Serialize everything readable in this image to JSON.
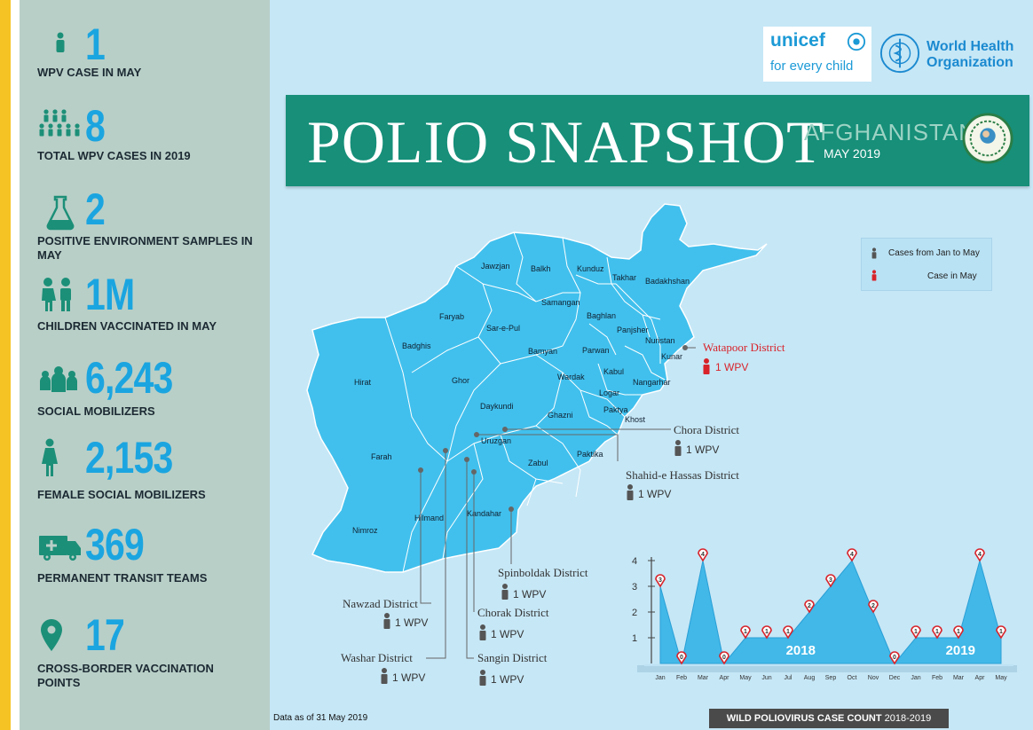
{
  "sidebar": {
    "stats": [
      {
        "value": "1",
        "label": "WPV CASE IN MAY",
        "icon": "person-icon"
      },
      {
        "value": "8",
        "label": "TOTAL WPV CASES IN 2019",
        "icon": "group-icon"
      },
      {
        "value": "2",
        "label": "POSITIVE ENVIRONMENT SAMPLES IN MAY",
        "icon": "flask-icon"
      },
      {
        "value": "1M",
        "label": "CHILDREN VACCINATED IN MAY",
        "icon": "children-icon"
      },
      {
        "value": "6,243",
        "label": "SOCIAL MOBILIZERS",
        "icon": "crowd-icon"
      },
      {
        "value": "2,153",
        "label": "FEMALE SOCIAL MOBILIZERS",
        "icon": "female-icon"
      },
      {
        "value": "369",
        "label": "PERMANENT TRANSIT TEAMS",
        "icon": "ambulance-icon"
      },
      {
        "value": "17",
        "label": "CROSS-BORDER VACCINATION POINTS",
        "icon": "location-pin-icon"
      }
    ]
  },
  "logos": {
    "unicef_name": "unicef",
    "unicef_tagline": "for every child",
    "who_line1": "World Health",
    "who_line2": "Organization"
  },
  "banner": {
    "title": "POLIO SNAPSHOT",
    "country": "AFGHANISTAN",
    "month": "MAY 2019"
  },
  "legend": {
    "jan_to_may": "Cases from Jan to May",
    "in_may": "Case in  May"
  },
  "colors": {
    "accent": "#1ba5e0",
    "banner": "#178f79",
    "map_fill": "#41c0ed",
    "highlight": "#d8232a",
    "sidebar": "#b8cfc7"
  },
  "map": {
    "provinces": [
      "Jawzjan",
      "Balkh",
      "Kunduz",
      "Takhar",
      "Badakhshan",
      "Samangan",
      "Faryab",
      "Baghlan",
      "Sar-e-Pul",
      "Panjsher",
      "Nuristan",
      "Badghis",
      "Bamyan",
      "Parwan",
      "Kunar",
      "Hirat",
      "Ghor",
      "Kabul",
      "Wardak",
      "Nangarhar",
      "Logar",
      "Daykundi",
      "Ghazni",
      "Paktya",
      "Khost",
      "Uruzgan",
      "Farah",
      "Paktika",
      "Zabul",
      "Hilmand",
      "Kandahar",
      "Nimroz"
    ],
    "districts": [
      {
        "name": "Watapoor District",
        "count": "1 WPV",
        "type": "may"
      },
      {
        "name": "Chora District",
        "count": "1 WPV",
        "type": "year"
      },
      {
        "name": "Shahid-e Hassas District",
        "count": "1 WPV",
        "type": "year"
      },
      {
        "name": "Spinboldak District",
        "count": "1 WPV",
        "type": "year"
      },
      {
        "name": "Nawzad District",
        "count": "1 WPV",
        "type": "year"
      },
      {
        "name": "Chorak District",
        "count": "1 WPV",
        "type": "year"
      },
      {
        "name": "Washar District",
        "count": "1 WPV",
        "type": "year"
      },
      {
        "name": "Sangin District",
        "count": "1 WPV",
        "type": "year"
      }
    ]
  },
  "chart_data": {
    "type": "area",
    "title": "WILD POLIOVIRUS CASE COUNT",
    "subtitle": "2018-2019",
    "categories": [
      "Jan",
      "Feb",
      "Mar",
      "Apr",
      "May",
      "Jun",
      "Jul",
      "Aug",
      "Sep",
      "Oct",
      "Nov",
      "Dec",
      "Jan",
      "Feb",
      "Mar",
      "Apr",
      "May"
    ],
    "series": [
      {
        "values": [
          3,
          0,
          4,
          0,
          1,
          1,
          1,
          2,
          3,
          4,
          2,
          0,
          1,
          1,
          1,
          4,
          1
        ]
      }
    ],
    "year_labels": [
      "2018",
      "2019"
    ],
    "yticks": [
      "1",
      "2",
      "3",
      "4"
    ],
    "ylim": [
      0,
      4
    ]
  },
  "footer": {
    "data_as_of": "Data as of 31 May 2019",
    "chart_caption": "WILD POLIOVIRUS CASE COUNT",
    "chart_years": "2018-2019"
  }
}
